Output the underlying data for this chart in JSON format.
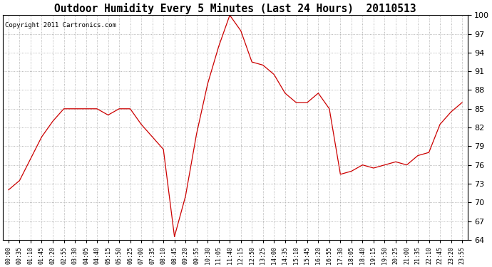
{
  "title": "Outdoor Humidity Every 5 Minutes (Last 24 Hours)  20110513",
  "copyright": "Copyright 2011 Cartronics.com",
  "line_color": "#cc0000",
  "bg_color": "#ffffff",
  "grid_color": "#999999",
  "ylim": [
    64.0,
    100.0
  ],
  "yticks": [
    64.0,
    67.0,
    70.0,
    73.0,
    76.0,
    79.0,
    82.0,
    85.0,
    88.0,
    91.0,
    94.0,
    97.0,
    100.0
  ],
  "x_labels": [
    "00:00",
    "00:35",
    "01:10",
    "01:45",
    "02:20",
    "02:55",
    "03:30",
    "04:05",
    "04:40",
    "05:15",
    "05:50",
    "06:25",
    "07:00",
    "07:35",
    "08:10",
    "08:45",
    "09:20",
    "09:55",
    "10:30",
    "11:05",
    "11:40",
    "12:15",
    "12:50",
    "13:25",
    "14:00",
    "14:35",
    "15:10",
    "15:45",
    "16:20",
    "16:55",
    "17:30",
    "18:05",
    "18:40",
    "19:15",
    "19:50",
    "20:25",
    "21:00",
    "21:35",
    "22:10",
    "22:45",
    "23:20",
    "23:55"
  ],
  "humidity_values": [
    72.0,
    73.5,
    77.0,
    80.5,
    83.0,
    85.0,
    85.0,
    85.0,
    85.0,
    84.0,
    85.0,
    85.0,
    82.5,
    80.5,
    78.5,
    64.5,
    71.0,
    81.0,
    89.0,
    95.0,
    100.0,
    97.5,
    92.5,
    92.0,
    90.5,
    87.5,
    86.0,
    86.0,
    87.5,
    85.0,
    74.5,
    75.0,
    76.0,
    75.5,
    76.0,
    76.5,
    76.0,
    77.5,
    78.0,
    82.5,
    84.5,
    86.0
  ]
}
